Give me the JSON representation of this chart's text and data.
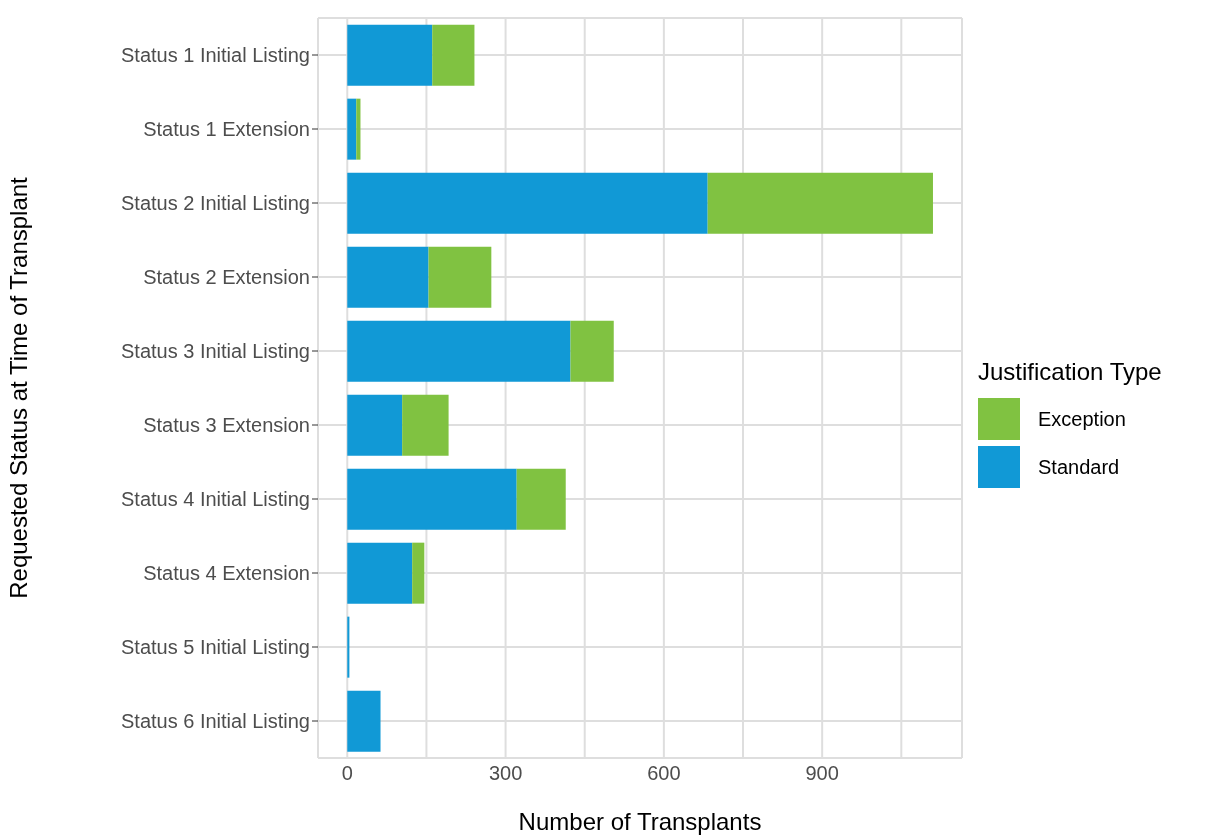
{
  "chart_data": {
    "type": "bar",
    "orientation": "horizontal",
    "stacked": true,
    "xlabel": "Number of Transplants",
    "ylabel": "Requested Status at Time of Transplant",
    "legend_title": "Justification Type",
    "legend": "right",
    "grid": true,
    "categories": [
      "Status 1 Initial Listing",
      "Status 1 Extension",
      "Status 2 Initial Listing",
      "Status 2 Extension",
      "Status 3 Initial Listing",
      "Status 3 Extension",
      "Status 4 Initial Listing",
      "Status 4 Extension",
      "Status 5 Initial Listing",
      "Status 6 Initial Listing"
    ],
    "series": [
      {
        "name": "Standard",
        "color": "#1199d6",
        "values": [
          161,
          17,
          683,
          154,
          423,
          104,
          321,
          123,
          4,
          63
        ]
      },
      {
        "name": "Exception",
        "color": "#80c241",
        "values": [
          80,
          8,
          427,
          119,
          82,
          88,
          93,
          23,
          0,
          0
        ]
      }
    ],
    "xlim": [
      -55.5,
      1165
    ],
    "xticks": [
      0,
      {
        "value": 150,
        "label": null
      },
      300,
      {
        "value": 450,
        "label": null
      },
      600,
      {
        "value": 750,
        "label": null
      },
      900,
      {
        "value": 1050,
        "label": null
      }
    ]
  }
}
